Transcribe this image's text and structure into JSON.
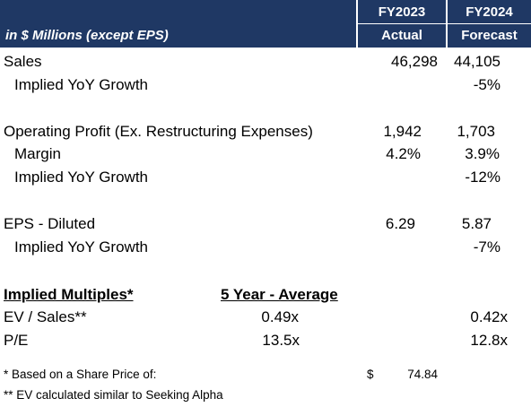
{
  "header": {
    "units_label": "in $ Millions (except EPS)",
    "col1_year": "FY2023",
    "col1_type": "Actual",
    "col2_year": "FY2024",
    "col2_type": "Forecast"
  },
  "rows": {
    "sales": {
      "label": "Sales",
      "fy2023": "46,298",
      "fy2024": "44,105"
    },
    "sales_growth": {
      "label": "Implied YoY Growth",
      "fy2024": "-5%"
    },
    "op_profit": {
      "label": "Operating Profit (Ex. Restructuring Expenses)",
      "fy2023": "1,942",
      "fy2024": "1,703"
    },
    "margin": {
      "label": "Margin",
      "fy2023": "4.2%",
      "fy2024": "3.9%"
    },
    "op_growth": {
      "label": "Implied YoY Growth",
      "fy2024": "-12%"
    },
    "eps": {
      "label": "EPS - Diluted",
      "fy2023": "6.29",
      "fy2024": "5.87"
    },
    "eps_growth": {
      "label": "Implied YoY Growth",
      "fy2024": "-7%"
    }
  },
  "multiples": {
    "title": "Implied Multiples*",
    "avg_header": "5 Year - Average",
    "ev_sales": {
      "label": "EV / Sales**",
      "avg": "0.49x",
      "fy2024": "0.42x"
    },
    "pe": {
      "label": "P/E",
      "avg": "13.5x",
      "fy2024": "12.8x"
    }
  },
  "notes": {
    "note1": "* Based on a Share Price of:",
    "currency": "$",
    "share_price": "74.84",
    "note2": "** EV calculated similar to Seeking Alpha"
  },
  "colors": {
    "header_bg": "#1f3864",
    "header_text": "#ffffff"
  }
}
